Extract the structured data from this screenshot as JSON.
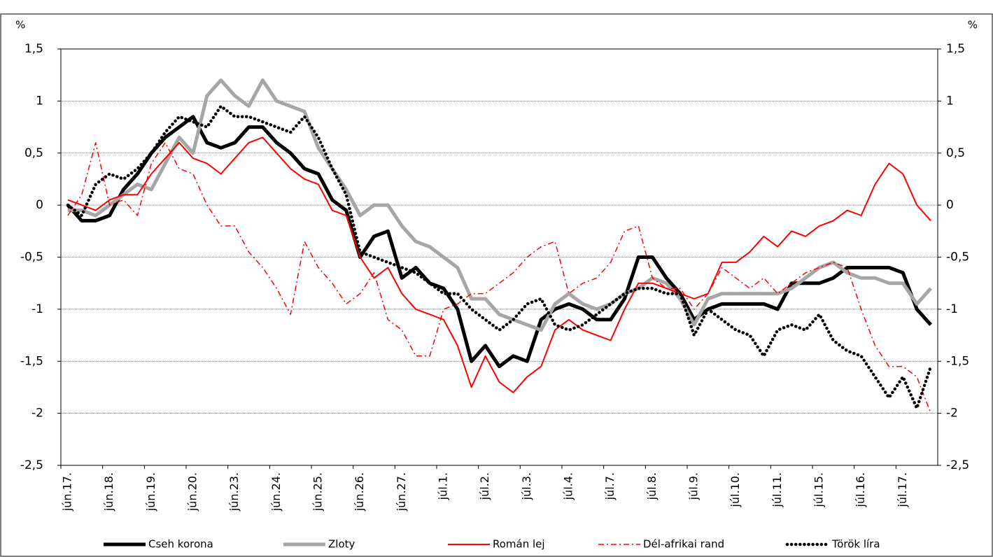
{
  "chart_data": {
    "type": "line",
    "ylabel": "%",
    "y2label": "%",
    "categories": [
      "jún.17.",
      null,
      null,
      "jún.18.",
      null,
      null,
      "jún.19.",
      null,
      null,
      "jún.20.",
      null,
      null,
      "jún.23.",
      null,
      null,
      "jún.24.",
      null,
      null,
      "jún.25.",
      null,
      null,
      "jún.26.",
      null,
      null,
      "jún.27.",
      null,
      null,
      "júl.1.",
      null,
      null,
      "júl.2.",
      null,
      null,
      "júl.3.",
      null,
      null,
      "júl.4.",
      null,
      null,
      "júl.7.",
      null,
      null,
      "júl.8.",
      null,
      null,
      "júl.9.",
      null,
      null,
      "júl.10.",
      null,
      null,
      "júl.11.",
      null,
      null,
      "júl.15.",
      null,
      null,
      "júl.16.",
      null,
      null,
      "júl.17.",
      null,
      null
    ],
    "ylim": [
      -2.5,
      1.5
    ],
    "yticks": [
      {
        "value": -2.5,
        "label": "-2,5"
      },
      -2,
      {
        "value": -1.5,
        "label": "-1,5"
      },
      -1,
      {
        "value": -0.5,
        "label": "-0,5"
      },
      0,
      {
        "value": 0.5,
        "label": "0,5"
      },
      1,
      {
        "value": 1.5,
        "label": "1,5"
      }
    ],
    "y2lim": [
      -2.5,
      1.5
    ],
    "y2ticks": [
      {
        "value": -2.5,
        "label": "-2,5"
      },
      -2,
      {
        "value": -1.5,
        "label": "-1,5"
      },
      -1,
      {
        "value": -0.5,
        "label": "-0,5"
      },
      0,
      {
        "value": 0.5,
        "label": "0,5"
      },
      1,
      {
        "value": 1.5,
        "label": "1,5"
      }
    ],
    "grid": true,
    "legend": "bottom",
    "series": [
      {
        "name": "Cseh korona",
        "color": "#000000",
        "style": "solid-thick",
        "values": [
          0,
          -0.15,
          -0.15,
          -0.1,
          0.15,
          0.3,
          0.5,
          0.65,
          0.75,
          0.85,
          0.6,
          0.55,
          0.6,
          0.75,
          0.75,
          0.6,
          0.5,
          0.35,
          0.3,
          0.05,
          -0.05,
          -0.5,
          -0.3,
          -0.25,
          -0.7,
          -0.6,
          -0.75,
          -0.8,
          -1.0,
          -1.5,
          -1.35,
          -1.55,
          -1.45,
          -1.5,
          -1.1,
          -1.0,
          -0.95,
          -1.0,
          -1.1,
          -1.1,
          -0.9,
          -0.5,
          -0.5,
          -0.7,
          -0.85,
          -1.1,
          -1.0,
          -0.95,
          -0.95,
          -0.95,
          -0.95,
          -1.0,
          -0.75,
          -0.75,
          -0.75,
          -0.7,
          -0.6,
          -0.6,
          -0.6,
          -0.6,
          -0.65,
          -1.0,
          -1.15
        ]
      },
      {
        "name": "Zloty",
        "color": "#a6a6a6",
        "style": "solid-thick",
        "values": [
          -0.05,
          -0.05,
          -0.1,
          0.0,
          0.1,
          0.2,
          0.15,
          0.4,
          0.65,
          0.5,
          1.05,
          1.2,
          1.05,
          0.95,
          1.2,
          1.0,
          0.95,
          0.9,
          0.55,
          0.35,
          0.15,
          -0.1,
          0.0,
          0.0,
          -0.2,
          -0.35,
          -0.4,
          -0.5,
          -0.6,
          -0.9,
          -0.9,
          -1.05,
          -1.1,
          -1.15,
          -1.2,
          -0.95,
          -0.85,
          -0.95,
          -1.0,
          -0.95,
          -0.85,
          -0.8,
          -0.7,
          -0.75,
          -0.9,
          -1.15,
          -0.9,
          -0.85,
          -0.85,
          -0.85,
          -0.85,
          -0.85,
          -0.8,
          -0.7,
          -0.6,
          -0.55,
          -0.65,
          -0.7,
          -0.7,
          -0.75,
          -0.75,
          -0.95,
          -0.8
        ]
      },
      {
        "name": "Román lej",
        "color": "#ff0000",
        "style": "solid-thin",
        "values": [
          0.05,
          0.0,
          -0.05,
          0.05,
          0.1,
          0.1,
          0.3,
          0.45,
          0.6,
          0.45,
          0.4,
          0.3,
          0.45,
          0.6,
          0.65,
          0.5,
          0.35,
          0.25,
          0.2,
          -0.05,
          -0.1,
          -0.5,
          -0.7,
          -0.6,
          -0.85,
          -1.0,
          -1.05,
          -1.1,
          -1.35,
          -1.75,
          -1.45,
          -1.7,
          -1.8,
          -1.65,
          -1.55,
          -1.2,
          -1.1,
          -1.2,
          -1.25,
          -1.3,
          -1.0,
          -0.75,
          -0.75,
          -0.8,
          -0.85,
          -0.9,
          -0.85,
          -0.55,
          -0.55,
          -0.45,
          -0.3,
          -0.4,
          -0.25,
          -0.3,
          -0.2,
          -0.15,
          -0.05,
          -0.1,
          0.2,
          0.4,
          0.3,
          0.0,
          -0.15
        ]
      },
      {
        "name": "Dél-afrikai rand",
        "color": "#ff0000",
        "style": "dash-dot",
        "values": [
          -0.1,
          0.1,
          0.6,
          0.0,
          0.05,
          -0.1,
          0.4,
          0.6,
          0.35,
          0.3,
          0.0,
          -0.2,
          -0.2,
          -0.45,
          -0.6,
          -0.8,
          -1.05,
          -0.35,
          -0.6,
          -0.75,
          -0.95,
          -0.85,
          -0.65,
          -1.1,
          -1.2,
          -1.45,
          -1.45,
          -1.0,
          -0.95,
          -0.85,
          -0.85,
          -0.75,
          -0.65,
          -0.5,
          -0.4,
          -0.35,
          -0.85,
          -0.75,
          -0.7,
          -0.55,
          -0.25,
          -0.2,
          -0.7,
          -0.8,
          -0.8,
          -1.0,
          -0.85,
          -0.6,
          -0.7,
          -0.8,
          -0.7,
          -0.85,
          -0.75,
          -0.65,
          -0.6,
          -0.55,
          -0.6,
          -1.0,
          -1.35,
          -1.55,
          -1.55,
          -1.65,
          -2.0
        ]
      },
      {
        "name": "Török líra",
        "color": "#000000",
        "style": "dotted",
        "values": [
          0.0,
          -0.1,
          0.2,
          0.3,
          0.25,
          0.35,
          0.5,
          0.7,
          0.85,
          0.8,
          0.75,
          0.95,
          0.85,
          0.85,
          0.8,
          0.75,
          0.7,
          0.85,
          0.65,
          0.35,
          0.1,
          -0.45,
          -0.5,
          -0.55,
          -0.6,
          -0.65,
          -0.75,
          -0.85,
          -0.85,
          -1.0,
          -1.1,
          -1.2,
          -1.1,
          -0.95,
          -0.9,
          -1.15,
          -1.2,
          -1.15,
          -1.05,
          -0.95,
          -0.85,
          -0.8,
          -0.8,
          -0.85,
          -0.85,
          -1.25,
          -1.0,
          -1.1,
          -1.2,
          -1.25,
          -1.45,
          -1.2,
          -1.15,
          -1.2,
          -1.05,
          -1.3,
          -1.4,
          -1.45,
          -1.65,
          -1.85,
          -1.65,
          -1.95,
          -1.55
        ]
      }
    ]
  }
}
